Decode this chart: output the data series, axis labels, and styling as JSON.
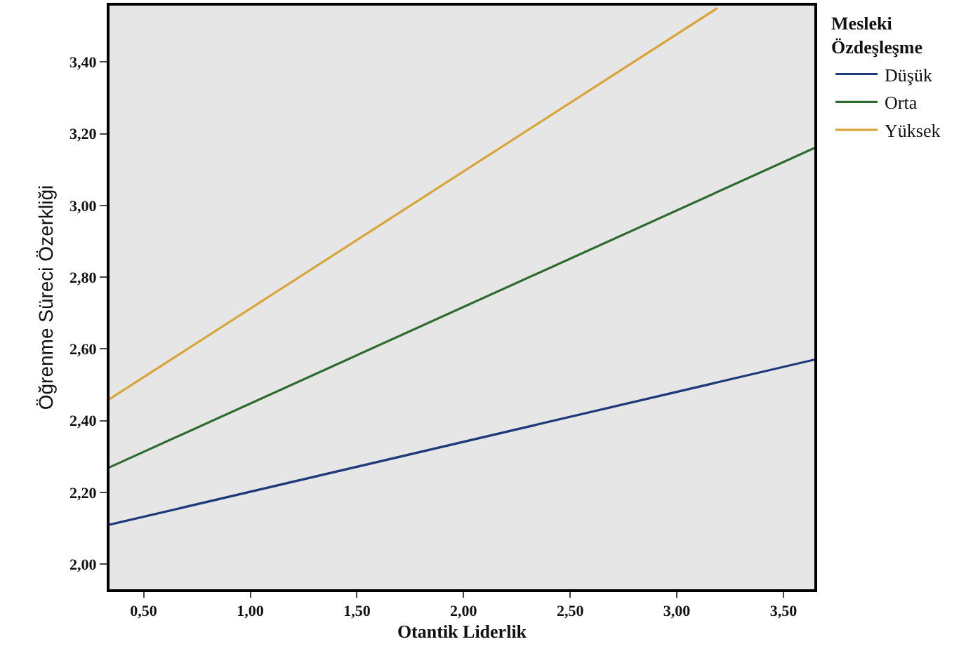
{
  "chart_data": {
    "type": "line",
    "xlabel": "Otantik Liderlik",
    "ylabel": "Öğrenme Süreci Özerkliği",
    "legend_title": "Mesleki Özdeşleşme",
    "legend": "top right",
    "grid": false,
    "marker": "none",
    "line_style": "solid",
    "xlim": [
      0.34,
      3.645
    ],
    "ylim": [
      1.93,
      3.557
    ],
    "xticks": [
      {
        "value": 0.5,
        "label": "0,50"
      },
      {
        "value": 1,
        "label": "1,00"
      },
      {
        "value": 1.5,
        "label": "1,50"
      },
      {
        "value": 2,
        "label": "2,00"
      },
      {
        "value": 2.5,
        "label": "2,50"
      },
      {
        "value": 3,
        "label": "3,00"
      },
      {
        "value": 3.5,
        "label": "3,50"
      }
    ],
    "yticks": [
      {
        "value": 2,
        "label": "2,00"
      },
      {
        "value": 2.2,
        "label": "2,20"
      },
      {
        "value": 2.4,
        "label": "2,40"
      },
      {
        "value": 2.6,
        "label": "2,60"
      },
      {
        "value": 2.8,
        "label": "2,80"
      },
      {
        "value": 3,
        "label": "3,00"
      },
      {
        "value": 3.2,
        "label": "3,20"
      },
      {
        "value": 3.4,
        "label": "3,40"
      }
    ],
    "series": [
      {
        "name": "Düşük",
        "color": "#1f3a7a",
        "x": [
          0.34,
          3.645
        ],
        "values": [
          2.11,
          2.57
        ]
      },
      {
        "name": "Orta",
        "color": "#2e6b2e",
        "x": [
          0.34,
          3.645
        ],
        "values": [
          2.27,
          3.16
        ]
      },
      {
        "name": "Yüksek",
        "color": "#d9a43a",
        "x": [
          0.34,
          3.19
        ],
        "values": [
          2.46,
          3.55
        ]
      }
    ]
  }
}
